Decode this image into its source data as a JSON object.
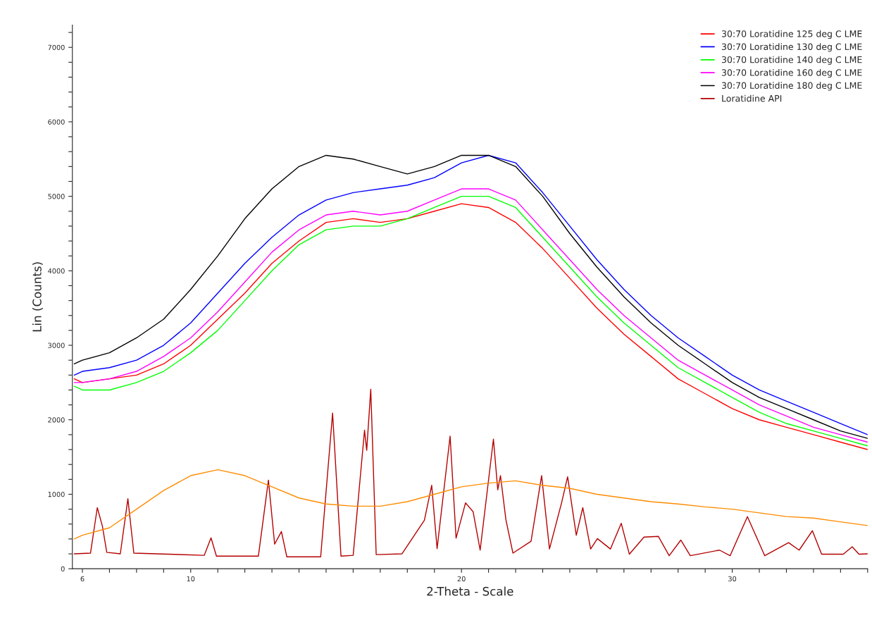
{
  "chart_data": {
    "type": "line",
    "xlabel": "2-Theta - Scale",
    "ylabel": "Lin (Counts)",
    "xlim": [
      5.63,
      35
    ],
    "ylim": [
      0,
      7300
    ],
    "xticks": [
      6,
      {
        "value": 7,
        "label": null
      },
      {
        "value": 8,
        "label": null
      },
      {
        "value": 9,
        "label": null
      },
      10,
      {
        "value": 11,
        "label": null
      },
      {
        "value": 12,
        "label": null
      },
      {
        "value": 13,
        "label": null
      },
      {
        "value": 14,
        "label": null
      },
      {
        "value": 15,
        "label": null
      },
      {
        "value": 16,
        "label": null
      },
      {
        "value": 17,
        "label": null
      },
      {
        "value": 18,
        "label": null
      },
      {
        "value": 19,
        "label": null
      },
      20,
      {
        "value": 21,
        "label": null
      },
      {
        "value": 22,
        "label": null
      },
      {
        "value": 23,
        "label": null
      },
      {
        "value": 24,
        "label": null
      },
      {
        "value": 25,
        "label": null
      },
      {
        "value": 26,
        "label": null
      },
      {
        "value": 27,
        "label": null
      },
      {
        "value": 28,
        "label": null
      },
      {
        "value": 29,
        "label": null
      },
      30,
      {
        "value": 31,
        "label": null
      },
      {
        "value": 32,
        "label": null
      },
      {
        "value": 33,
        "label": null
      },
      {
        "value": 34,
        "label": null
      },
      {
        "value": 35,
        "label": null
      }
    ],
    "yticks": [
      0,
      {
        "value": 200,
        "label": null
      },
      {
        "value": 400,
        "label": null
      },
      {
        "value": 600,
        "label": null
      },
      {
        "value": 800,
        "label": null
      },
      1000,
      {
        "value": 1200,
        "label": null
      },
      {
        "value": 1400,
        "label": null
      },
      {
        "value": 1600,
        "label": null
      },
      {
        "value": 1800,
        "label": null
      },
      2000,
      {
        "value": 2200,
        "label": null
      },
      {
        "value": 2400,
        "label": null
      },
      {
        "value": 2600,
        "label": null
      },
      {
        "value": 2800,
        "label": null
      },
      3000,
      {
        "value": 3200,
        "label": null
      },
      {
        "value": 3400,
        "label": null
      },
      {
        "value": 3600,
        "label": null
      },
      {
        "value": 3800,
        "label": null
      },
      4000,
      {
        "value": 4200,
        "label": null
      },
      {
        "value": 4400,
        "label": null
      },
      {
        "value": 4600,
        "label": null
      },
      {
        "value": 4800,
        "label": null
      },
      5000,
      {
        "value": 5200,
        "label": null
      },
      {
        "value": 5400,
        "label": null
      },
      {
        "value": 5600,
        "label": null
      },
      {
        "value": 5800,
        "label": null
      },
      6000,
      {
        "value": 6200,
        "label": null
      },
      {
        "value": 6400,
        "label": null
      },
      {
        "value": 6600,
        "label": null
      },
      {
        "value": 6800,
        "label": null
      },
      7000,
      {
        "value": 7200,
        "label": null
      }
    ],
    "grid": false,
    "legend": "top right",
    "line_style": "solid",
    "x": [
      5.7,
      6,
      7,
      8,
      9,
      10,
      11,
      12,
      13,
      14,
      15,
      16,
      17,
      18,
      19,
      20,
      21,
      22,
      23,
      24,
      25,
      26,
      27,
      28,
      29,
      30,
      31,
      32,
      33,
      34,
      35
    ],
    "series": [
      {
        "name": "30:70 Loratidine 125 deg C LME",
        "color": "#ff0000",
        "values": [
          2550,
          2500,
          2550,
          2600,
          2750,
          3000,
          3350,
          3700,
          4100,
          4400,
          4650,
          4700,
          4650,
          4700,
          4800,
          4900,
          4850,
          4650,
          4300,
          3900,
          3500,
          3150,
          2850,
          2550,
          2350,
          2150,
          2000,
          1900,
          1800,
          1700,
          1600
        ]
      },
      {
        "name": "30:70 Loratidine 130 deg C LME",
        "color": "#0000ff",
        "values": [
          2600,
          2650,
          2700,
          2800,
          3000,
          3300,
          3700,
          4100,
          4450,
          4750,
          4950,
          5050,
          5100,
          5150,
          5250,
          5450,
          5550,
          5450,
          5050,
          4600,
          4150,
          3750,
          3400,
          3100,
          2850,
          2600,
          2400,
          2250,
          2100,
          1950,
          1800
        ]
      },
      {
        "name": "30:70 Loratidine 140 deg C LME",
        "color": "#00ff00",
        "values": [
          2450,
          2400,
          2400,
          2500,
          2650,
          2900,
          3200,
          3600,
          4000,
          4350,
          4550,
          4600,
          4600,
          4700,
          4850,
          5000,
          5000,
          4850,
          4450,
          4050,
          3650,
          3300,
          3000,
          2700,
          2500,
          2300,
          2100,
          1950,
          1850,
          1750,
          1650
        ]
      },
      {
        "name": "30:70 Loratidine 160 deg C LME",
        "color": "#ff00ff",
        "values": [
          2500,
          2500,
          2550,
          2650,
          2850,
          3100,
          3450,
          3850,
          4250,
          4550,
          4750,
          4800,
          4750,
          4800,
          4950,
          5100,
          5100,
          4950,
          4550,
          4150,
          3750,
          3400,
          3100,
          2800,
          2600,
          2400,
          2200,
          2050,
          1900,
          1800,
          1700
        ]
      },
      {
        "name": "30:70 Loratidine 180 deg C LME",
        "color": "#000000",
        "values": [
          2750,
          2800,
          2900,
          3100,
          3350,
          3750,
          4200,
          4700,
          5100,
          5400,
          5550,
          5500,
          5400,
          5300,
          5400,
          5550,
          5550,
          5400,
          5000,
          4500,
          4050,
          3650,
          3300,
          3000,
          2750,
          2500,
          2300,
          2150,
          2000,
          1850,
          1750
        ]
      },
      {
        "name": "Loratidine API",
        "color": "#b40000",
        "x": [
          5.7,
          6.3,
          6.55,
          6.74,
          6.9,
          7.4,
          7.68,
          7.9,
          10.5,
          10.75,
          10.95,
          12.5,
          12.87,
          13.1,
          13.35,
          13.55,
          14.8,
          15.24,
          15.55,
          16.0,
          16.42,
          16.5,
          16.65,
          16.85,
          17.8,
          18.63,
          18.9,
          19.1,
          19.58,
          19.8,
          20.15,
          20.43,
          20.69,
          21.18,
          21.34,
          21.44,
          21.64,
          21.9,
          22.57,
          22.96,
          23.25,
          23.7,
          23.92,
          24.24,
          24.48,
          24.77,
          25.02,
          25.5,
          25.9,
          26.2,
          26.74,
          27.27,
          27.67,
          28.1,
          28.45,
          29.53,
          29.92,
          30.56,
          31.2,
          32.08,
          32.47,
          32.96,
          33.3,
          34.1,
          34.43,
          34.68,
          35
        ],
        "values": [
          200,
          210,
          820,
          570,
          220,
          200,
          940,
          210,
          180,
          415,
          170,
          170,
          1190,
          330,
          500,
          160,
          160,
          2090,
          170,
          180,
          1860,
          1590,
          2410,
          190,
          200,
          650,
          1120,
          270,
          1780,
          410,
          885,
          765,
          250,
          1740,
          1060,
          1250,
          660,
          210,
          370,
          1250,
          265,
          890,
          1235,
          450,
          820,
          265,
          405,
          265,
          610,
          195,
          425,
          435,
          175,
          385,
          175,
          250,
          175,
          700,
          175,
          350,
          250,
          510,
          195,
          195,
          295,
          195,
          200
        ]
      },
      {
        "color": "#ff8c00",
        "values": [
          400,
          450,
          550,
          800,
          1050,
          1250,
          1330,
          1250,
          1100,
          950,
          870,
          840,
          840,
          900,
          1000,
          1100,
          1150,
          1180,
          1120,
          1080,
          1000,
          950,
          900,
          870,
          830,
          800,
          750,
          700,
          680,
          630,
          580
        ]
      }
    ]
  }
}
